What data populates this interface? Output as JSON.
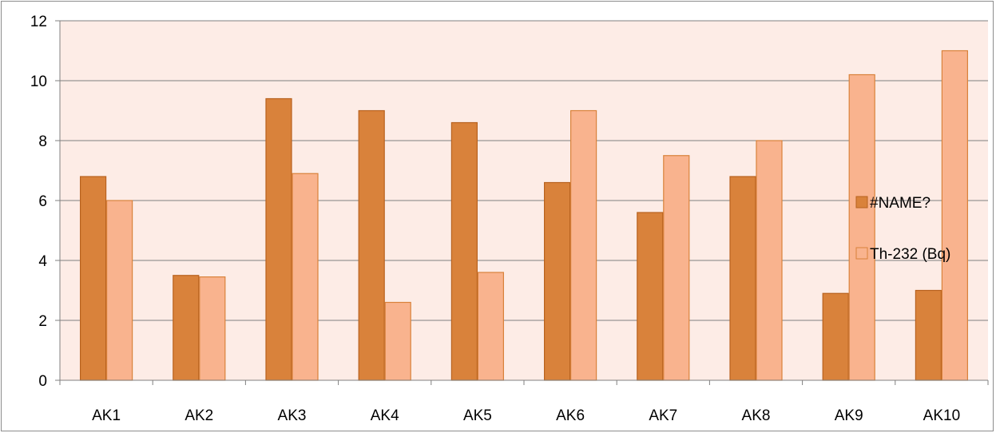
{
  "chart_data": {
    "type": "bar",
    "categories": [
      "AK1",
      "AK2",
      "AK3",
      "AK4",
      "AK5",
      "AK6",
      "AK7",
      "AK8",
      "AK9",
      "AK10"
    ],
    "series": [
      {
        "name": "#NAME?",
        "values": [
          6.8,
          3.5,
          9.4,
          9.0,
          8.6,
          6.6,
          5.6,
          6.8,
          2.9,
          3.0
        ],
        "color": "#d9823b",
        "stroke": "#b8621f"
      },
      {
        "name": "Th-232 (Bq)",
        "values": [
          6.0,
          3.45,
          6.9,
          2.6,
          3.6,
          9.0,
          7.5,
          8.0,
          10.2,
          11.0
        ],
        "color": "#f9b38e",
        "stroke": "#d9823b"
      }
    ],
    "ylim": [
      0,
      12
    ],
    "yticks": [
      0,
      2,
      4,
      6,
      8,
      10,
      12
    ],
    "grid": true,
    "legend_position": "right",
    "plot_background": "#fdece6",
    "gridline_color": "#808080"
  }
}
